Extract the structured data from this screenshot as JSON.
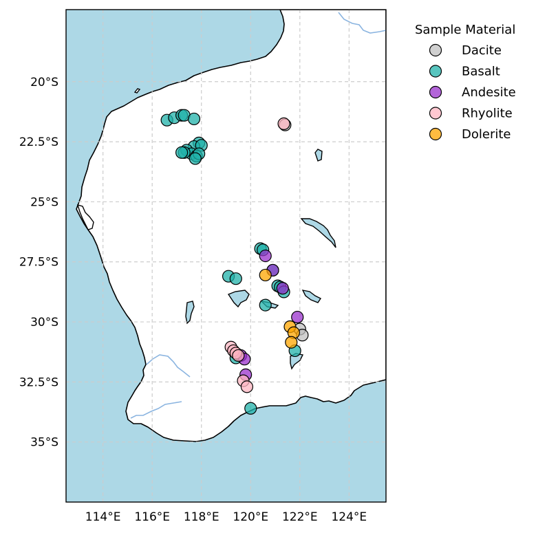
{
  "chart_data": {
    "type": "scatter",
    "projection": "plate-carree",
    "xlim": [
      112.5,
      125.5
    ],
    "ylim": [
      -37.5,
      -17.0
    ],
    "grid": true,
    "x_ticks": [
      114,
      116,
      118,
      120,
      122,
      124
    ],
    "x_tick_labels": [
      "114°E",
      "116°E",
      "118°E",
      "120°E",
      "122°E",
      "124°E"
    ],
    "y_ticks": [
      -20,
      -22.5,
      -25,
      -27.5,
      -30,
      -32.5,
      -35
    ],
    "y_tick_labels": [
      "20°S",
      "22.5°S",
      "25°S",
      "27.5°S",
      "30°S",
      "32.5°S",
      "35°S"
    ],
    "legend": {
      "title": "Sample Material",
      "placement": "outside-top-right",
      "entries": [
        "Dacite",
        "Basalt",
        "Andesite",
        "Rhyolite",
        "Dolerite"
      ]
    },
    "colors": {
      "ocean": "#add8e6",
      "land": "#ffffff",
      "coastline": "#000000",
      "rivers": "#8ab4e0",
      "lakes": "#9bb8e0",
      "grid": "#cccccc"
    },
    "series": [
      {
        "name": "Dacite",
        "color": "#c0c0c0",
        "points": [
          {
            "lon": 121.4,
            "lat": -21.8
          },
          {
            "lon": 122.0,
            "lat": -30.3
          },
          {
            "lon": 122.1,
            "lat": -30.55
          }
        ]
      },
      {
        "name": "Basalt",
        "color": "#20b2aa",
        "points": [
          {
            "lon": 116.6,
            "lat": -21.6
          },
          {
            "lon": 116.9,
            "lat": -21.5
          },
          {
            "lon": 117.2,
            "lat": -21.4
          },
          {
            "lon": 117.3,
            "lat": -21.4
          },
          {
            "lon": 117.7,
            "lat": -21.55
          },
          {
            "lon": 117.9,
            "lat": -22.55
          },
          {
            "lon": 117.7,
            "lat": -22.7
          },
          {
            "lon": 118.0,
            "lat": -22.65
          },
          {
            "lon": 117.4,
            "lat": -22.85
          },
          {
            "lon": 117.6,
            "lat": -23.0
          },
          {
            "lon": 117.8,
            "lat": -23.1
          },
          {
            "lon": 117.9,
            "lat": -23.0
          },
          {
            "lon": 117.3,
            "lat": -22.95
          },
          {
            "lon": 117.2,
            "lat": -22.95
          },
          {
            "lon": 117.75,
            "lat": -23.2
          },
          {
            "lon": 120.4,
            "lat": -26.95
          },
          {
            "lon": 120.5,
            "lat": -27.0
          },
          {
            "lon": 120.9,
            "lat": -27.85
          },
          {
            "lon": 119.1,
            "lat": -28.1
          },
          {
            "lon": 119.4,
            "lat": -28.2
          },
          {
            "lon": 121.1,
            "lat": -28.5
          },
          {
            "lon": 121.2,
            "lat": -28.55
          },
          {
            "lon": 121.35,
            "lat": -28.75
          },
          {
            "lon": 120.6,
            "lat": -29.3
          },
          {
            "lon": 121.8,
            "lat": -31.2
          },
          {
            "lon": 119.4,
            "lat": -31.5
          },
          {
            "lon": 120.0,
            "lat": -33.6
          }
        ]
      },
      {
        "name": "Andesite",
        "color": "#9932cc",
        "points": [
          {
            "lon": 120.6,
            "lat": -27.25
          },
          {
            "lon": 120.9,
            "lat": -27.85
          },
          {
            "lon": 121.3,
            "lat": -28.6
          },
          {
            "lon": 121.9,
            "lat": -29.8
          },
          {
            "lon": 119.6,
            "lat": -31.4
          },
          {
            "lon": 119.75,
            "lat": -31.55
          },
          {
            "lon": 119.8,
            "lat": -32.2
          }
        ]
      },
      {
        "name": "Rhyolite",
        "color": "#ffb6c1",
        "points": [
          {
            "lon": 121.35,
            "lat": -21.75
          },
          {
            "lon": 119.2,
            "lat": -31.05
          },
          {
            "lon": 119.3,
            "lat": -31.2
          },
          {
            "lon": 119.4,
            "lat": -31.3
          },
          {
            "lon": 119.5,
            "lat": -31.4
          },
          {
            "lon": 119.7,
            "lat": -32.45
          },
          {
            "lon": 119.85,
            "lat": -32.7
          }
        ]
      },
      {
        "name": "Dolerite",
        "color": "#ffa500",
        "points": [
          {
            "lon": 120.6,
            "lat": -28.05
          },
          {
            "lon": 121.6,
            "lat": -30.2
          },
          {
            "lon": 121.75,
            "lat": -30.45
          },
          {
            "lon": 121.65,
            "lat": -30.85
          }
        ]
      }
    ]
  }
}
